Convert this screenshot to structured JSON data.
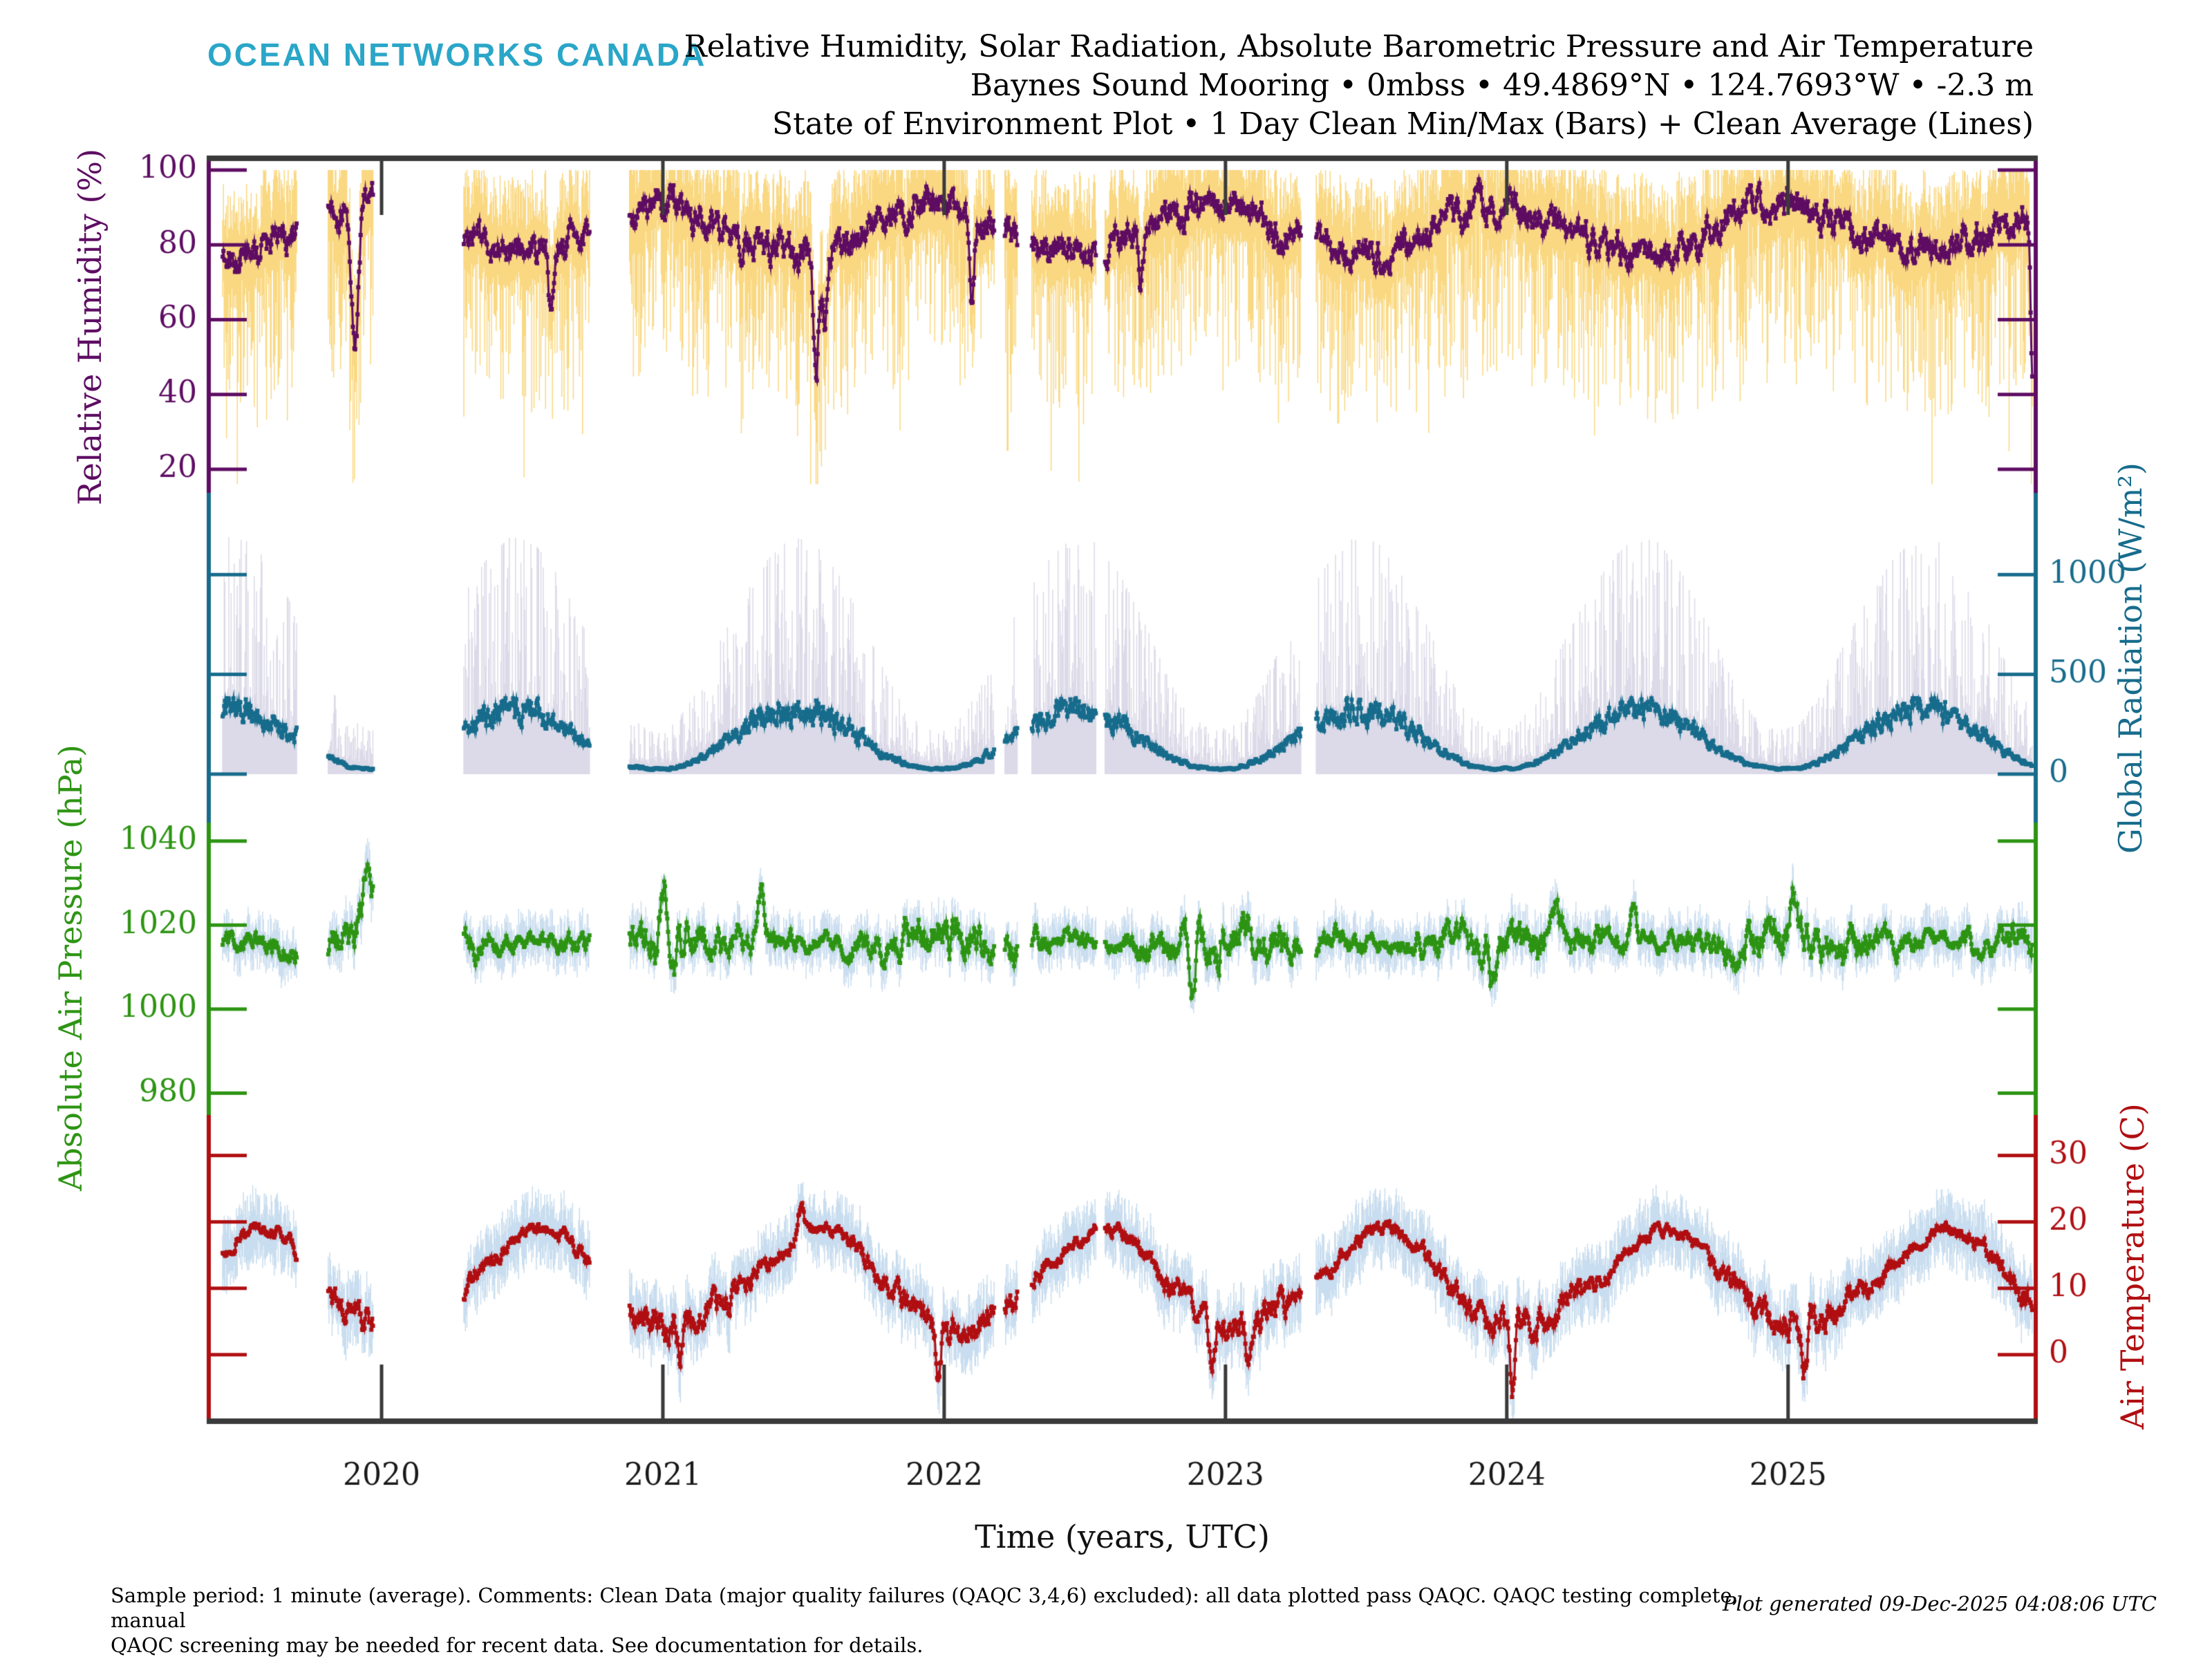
{
  "header": {
    "logo": "OCEAN NETWORKS CANADA",
    "logo_color": "#2AA6C8",
    "title_lines": [
      "Relative Humidity, Solar Radiation, Absolute Barometric Pressure and Air Temperature",
      "Baynes Sound Mooring • 0mbss • 49.4869°N • 124.7693°W • -2.3 m",
      "State of Environment Plot • 1 Day Clean Min/Max (Bars) + Clean Average (Lines)"
    ]
  },
  "footer": {
    "note_line1": "Sample period: 1 minute (average).  Comments: Clean Data (major quality failures (QAQC 3,4,6) excluded): all data plotted pass QAQC. QAQC testing complete, manual",
    "note_line2": "QAQC screening may be needed for recent data. See documentation for details.",
    "generated": "Plot generated 09-Dec-2025 04:08:06 UTC"
  },
  "colors": {
    "frame": "#3a3a3a",
    "year_label": "#1a1a1a",
    "background": "#ffffff"
  },
  "chart_data": {
    "type": "line",
    "description": "Four stacked min/max bar + daily average line time series panels",
    "xlabel": "Time (years, UTC)",
    "x_range": [
      2019.393,
      2025.873
    ],
    "data_start": 2019.435,
    "data_end": 2025.868,
    "x_ticks": [
      2020,
      2021,
      2022,
      2023,
      2024,
      2025
    ],
    "gaps": [
      [
        2019.7,
        2019.81
      ],
      [
        2019.97,
        2020.29
      ],
      [
        2020.74,
        2020.88
      ],
      [
        2022.18,
        2022.215
      ],
      [
        2022.26,
        2022.31
      ],
      [
        2022.54,
        2022.57
      ],
      [
        2023.27,
        2023.32
      ]
    ],
    "panels": [
      {
        "kind": "humidity",
        "axis_label": "Relative Humidity (%)",
        "label_side": "left",
        "ticks": [
          100,
          80,
          60,
          40,
          20
        ],
        "value_top": 102.4,
        "value_bottom": 13.7,
        "line_color": "#5E0D63",
        "bar_color": "#FAD881",
        "monthly_avg": [
          90,
          87,
          84,
          81,
          79,
          78,
          78,
          80,
          83,
          87,
          90,
          91
        ],
        "noise": {
          "sigma": 2.8,
          "phi": 0.75
        },
        "clamp": [
          30,
          100
        ],
        "seed": 11,
        "events": [
          [
            2019.906,
            -38,
            6
          ],
          [
            2020.6,
            -16,
            4
          ],
          [
            2021.545,
            -30,
            5
          ],
          [
            2021.575,
            -18,
            4
          ],
          [
            2022.1,
            -22,
            4
          ],
          [
            2022.7,
            -14,
            4
          ],
          [
            2025.868,
            -40,
            3
          ]
        ]
      },
      {
        "kind": "radiation",
        "axis_label": "Global Radiation (W/m²)",
        "label_side": "right",
        "ticks": [
          1000,
          500,
          0
        ],
        "value_top": 1410,
        "value_bottom": -243,
        "line_color": "#176C8C",
        "bar_color": "#DCDAE8",
        "monthly_avg": [
          30,
          70,
          145,
          225,
          290,
          325,
          315,
          260,
          180,
          95,
          42,
          24
        ],
        "monthly_max": [
          250,
          420,
          680,
          900,
          1080,
          1190,
          1160,
          1000,
          770,
          500,
          290,
          215
        ],
        "noise": {
          "sigma": 0.16,
          "phi": 0.55
        },
        "clamp": [
          6,
          380
        ],
        "seed": 22,
        "events": []
      },
      {
        "kind": "pressure",
        "axis_label": "Absolute Air Pressure (hPa)",
        "label_side": "left",
        "ticks": [
          1040,
          1020,
          1000,
          980
        ],
        "value_top": 1044.4,
        "value_bottom": 974.8,
        "line_color": "#2D9413",
        "bar_color": "#CBDEF0",
        "monthly_avg": [
          1017,
          1016.5,
          1016,
          1015.5,
          1016,
          1016,
          1016.5,
          1015.5,
          1015,
          1015,
          1015.5,
          1016.5
        ],
        "noise": {
          "sigma": 2.0,
          "phi": 0.85
        },
        "clamp": [
          976,
          1042
        ],
        "seed": 33,
        "events": [
          [
            2019.95,
            13,
            10
          ],
          [
            2021.0,
            12,
            6
          ],
          [
            2021.35,
            9,
            5
          ],
          [
            2022.88,
            -16,
            5
          ],
          [
            2022.97,
            -11,
            4
          ],
          [
            2023.95,
            -8,
            5
          ],
          [
            2024.45,
            11,
            5
          ],
          [
            2025.02,
            17,
            6
          ]
        ]
      },
      {
        "kind": "temperature",
        "axis_label": "Air Temperature (C)",
        "label_side": "right",
        "ticks": [
          30,
          20,
          10,
          0
        ],
        "value_top": 36.1,
        "value_bottom": -9.6,
        "line_color": "#B00F12",
        "bar_color": "#C8DDEF",
        "monthly_avg": [
          4.5,
          5.5,
          7.5,
          10.5,
          13.5,
          16.5,
          19,
          18.5,
          15.5,
          11,
          7,
          4.8
        ],
        "noise": {
          "sigma": 1.0,
          "phi": 0.78
        },
        "clamp": [
          -9,
          35
        ],
        "seed": 44,
        "events": [
          [
            2020.3,
            -3,
            6
          ],
          [
            2021.06,
            -5,
            4
          ],
          [
            2021.49,
            5,
            6
          ],
          [
            2021.98,
            -8,
            5
          ],
          [
            2022.02,
            -5,
            4
          ],
          [
            2022.95,
            -6,
            5
          ],
          [
            2023.08,
            -4,
            4
          ],
          [
            2024.02,
            -10,
            4
          ],
          [
            2025.06,
            -6,
            4
          ]
        ]
      }
    ]
  }
}
